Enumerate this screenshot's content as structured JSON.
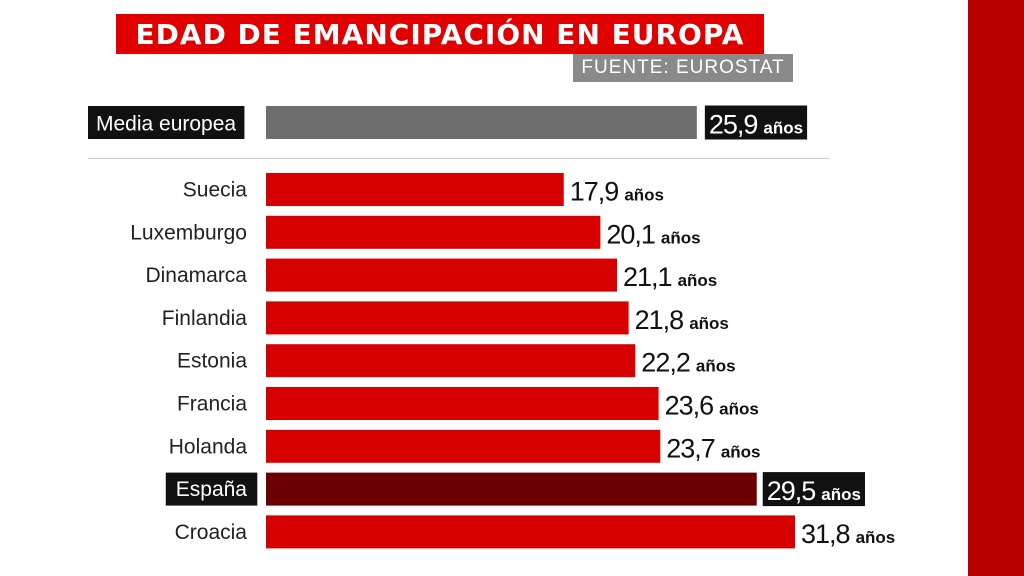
{
  "title": "EDAD DE EMANCIPACIÓN EN EUROPA",
  "source": "FUENTE: EUROSTAT",
  "unit": "años",
  "colors": {
    "title_bg": "#e00000",
    "bar": "#d60000",
    "highlight_bar": "#6b0000",
    "average_bar": "#6e6e6e",
    "label_box": "#111111",
    "side_band": "#b80000",
    "source_bg": "#8a8a8a"
  },
  "chart_data": {
    "type": "bar",
    "orientation": "horizontal",
    "title": "EDAD DE EMANCIPACIÓN EN EUROPA",
    "grid": false,
    "average": {
      "category": "Media europea",
      "value": 25.9,
      "value_label": "25,9"
    },
    "categories": [
      "Suecia",
      "Luxemburgo",
      "Dinamarca",
      "Finlandia",
      "Estonia",
      "Francia",
      "Holanda",
      "España",
      "Croacia"
    ],
    "values": [
      17.9,
      20.1,
      21.1,
      21.8,
      22.2,
      23.6,
      23.7,
      29.5,
      31.8
    ],
    "value_labels": [
      "17,9",
      "20,1",
      "21,1",
      "21,8",
      "22,2",
      "23,6",
      "23,7",
      "29,5",
      "31,8"
    ],
    "highlight": "España",
    "xlim": [
      0,
      31.8
    ]
  }
}
